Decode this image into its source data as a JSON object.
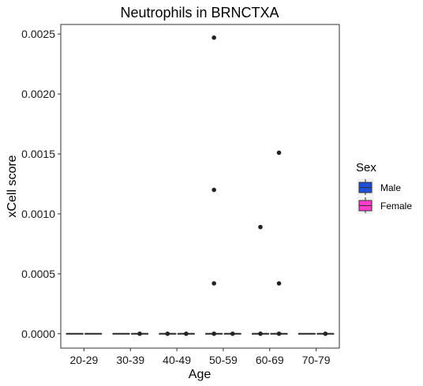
{
  "chart_data": {
    "type": "box",
    "title": "Neutrophils in BRNCTXA",
    "xlabel": "Age",
    "ylabel": "xCell score",
    "categories": [
      "20-29",
      "30-39",
      "40-49",
      "50-59",
      "60-69",
      "70-79"
    ],
    "ylim": [
      -0.00012,
      0.00258
    ],
    "yticks": [
      0,
      0.0005,
      0.001,
      0.0015,
      0.002,
      0.0025
    ],
    "ytick_labels": [
      "0.0000",
      "0.0005",
      "0.0010",
      "0.0015",
      "0.0020",
      "0.0025"
    ],
    "grid": false,
    "legend": {
      "title": "Sex",
      "position": "right",
      "entries": [
        {
          "name": "Male",
          "color": "#1f4fd8"
        },
        {
          "name": "Female",
          "color": "#ff3dc8"
        }
      ]
    },
    "series": [
      {
        "name": "Male",
        "color": "#1f4fd8",
        "boxes": [
          {
            "category": "20-29",
            "min": 0,
            "q1": 0,
            "median": 0,
            "q3": 0,
            "max": 0,
            "outliers": []
          },
          {
            "category": "30-39",
            "min": 0,
            "q1": 0,
            "median": 0,
            "q3": 0,
            "max": 0,
            "outliers": []
          },
          {
            "category": "40-49",
            "min": 0,
            "q1": 0,
            "median": 0,
            "q3": 0,
            "max": 0,
            "outliers": [
              0
            ]
          },
          {
            "category": "50-59",
            "min": 0,
            "q1": 0,
            "median": 0,
            "q3": 0,
            "max": 0,
            "outliers": [
              0.00247,
              0.0012,
              0.00042,
              0
            ]
          },
          {
            "category": "60-69",
            "min": 0,
            "q1": 0,
            "median": 0,
            "q3": 0,
            "max": 0,
            "outliers": [
              0.00089,
              0
            ]
          },
          {
            "category": "70-79",
            "min": 0,
            "q1": 0,
            "median": 0,
            "q3": 0,
            "max": 0,
            "outliers": []
          }
        ]
      },
      {
        "name": "Female",
        "color": "#ff3dc8",
        "boxes": [
          {
            "category": "20-29",
            "min": 0,
            "q1": 0,
            "median": 0,
            "q3": 0,
            "max": 0,
            "outliers": []
          },
          {
            "category": "30-39",
            "min": 0,
            "q1": 0,
            "median": 0,
            "q3": 0,
            "max": 0,
            "outliers": [
              0
            ]
          },
          {
            "category": "40-49",
            "min": 0,
            "q1": 0,
            "median": 0,
            "q3": 0,
            "max": 0,
            "outliers": [
              0
            ]
          },
          {
            "category": "50-59",
            "min": 0,
            "q1": 0,
            "median": 0,
            "q3": 0,
            "max": 0,
            "outliers": [
              0
            ]
          },
          {
            "category": "60-69",
            "min": 0,
            "q1": 0,
            "median": 0,
            "q3": 0,
            "max": 0,
            "outliers": [
              0.00151,
              0.00042,
              0
            ]
          },
          {
            "category": "70-79",
            "min": 0,
            "q1": 0,
            "median": 0,
            "q3": 0,
            "max": 0,
            "outliers": [
              0
            ]
          }
        ]
      }
    ]
  }
}
